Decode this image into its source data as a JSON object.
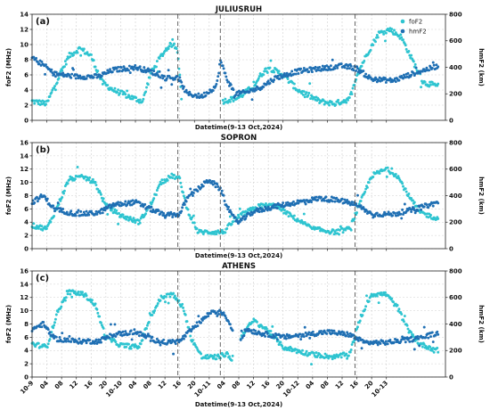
{
  "figure": {
    "xlabel": "Datetime(9-13 Oct,2024)",
    "legend": [
      "foF2",
      "hmF2"
    ]
  },
  "colors": {
    "foF2": "#2ec4d0",
    "hmF2": "#1f6fb3"
  },
  "chart_data": [
    {
      "type": "scatter",
      "panel_label": "(a)",
      "title": "JULIUSRUH",
      "xlabel": "Datetime(9-13 Oct,2024)",
      "ylabel": "foF2 (MHz)",
      "y2label": "hmF2 (km)",
      "ylim": [
        0,
        14
      ],
      "y2lim": [
        0,
        800
      ],
      "yticks": [
        0,
        2,
        4,
        6,
        8,
        10,
        12,
        14
      ],
      "y2ticks": [
        0,
        200,
        400,
        600,
        800
      ],
      "grid": true,
      "legend_position": "top-right",
      "vlines": [
        39.5,
        51.0,
        87.5
      ],
      "series": [
        {
          "name": "foF2",
          "axis": "left",
          "keypoints": [
            [
              0,
              2.5
            ],
            [
              4,
              2.2
            ],
            [
              7,
              5.5
            ],
            [
              10,
              8.5
            ],
            [
              13,
              9.5
            ],
            [
              16,
              8.5
            ],
            [
              19,
              5.0
            ],
            [
              22,
              4.0
            ],
            [
              27,
              3.0
            ],
            [
              30,
              2.5
            ],
            [
              32,
              6.0
            ],
            [
              35,
              8.5
            ],
            [
              37,
              9.8
            ],
            [
              38.5,
              10.0
            ],
            [
              39.5,
              9.0
            ],
            [
              40.5,
              3.0
            ],
            [
              51.5,
              2.5
            ],
            [
              56,
              3.0
            ],
            [
              60,
              4.5
            ],
            [
              62,
              6.0
            ],
            [
              64,
              7.0
            ],
            [
              68,
              6.0
            ],
            [
              72,
              4.0
            ],
            [
              78,
              2.5
            ],
            [
              82,
              2.2
            ],
            [
              86,
              2.8
            ],
            [
              88,
              6.0
            ],
            [
              91,
              9.0
            ],
            [
              94,
              11.5
            ],
            [
              97,
              12.0
            ],
            [
              100,
              11.0
            ],
            [
              103,
              8.0
            ],
            [
              106,
              5.0
            ],
            [
              110,
              4.5
            ]
          ],
          "gaps": [
            [
              40.5,
              51.5
            ]
          ]
        },
        {
          "name": "hmF2",
          "axis": "right",
          "keypoints": [
            [
              0,
              470
            ],
            [
              3,
              420
            ],
            [
              6,
              350
            ],
            [
              12,
              330
            ],
            [
              18,
              330
            ],
            [
              22,
              380
            ],
            [
              28,
              400
            ],
            [
              32,
              370
            ],
            [
              36,
              320
            ],
            [
              39.5,
              320
            ],
            [
              42,
              200
            ],
            [
              46,
              180
            ],
            [
              50,
              260
            ],
            [
              51,
              450
            ],
            [
              53,
              300
            ],
            [
              55,
              200
            ],
            [
              58,
              210
            ],
            [
              62,
              250
            ],
            [
              66,
              320
            ],
            [
              72,
              370
            ],
            [
              78,
              390
            ],
            [
              84,
              410
            ],
            [
              88,
              390
            ],
            [
              92,
              310
            ],
            [
              98,
              300
            ],
            [
              104,
              360
            ],
            [
              110,
              410
            ]
          ],
          "gaps": []
        }
      ]
    },
    {
      "type": "scatter",
      "panel_label": "(b)",
      "title": "SOPRON",
      "xlabel": "Datetime(9-13 Oct,2024)",
      "ylabel": "foF2 (MHz)",
      "y2label": "hmF2 (km)",
      "ylim": [
        0,
        16
      ],
      "y2lim": [
        0,
        800
      ],
      "yticks": [
        0,
        2,
        4,
        6,
        8,
        10,
        12,
        14,
        16
      ],
      "y2ticks": [
        0,
        200,
        400,
        600,
        800
      ],
      "grid": true,
      "legend_position": "",
      "vlines": [
        39.5,
        51.0,
        87.5
      ],
      "series": [
        {
          "name": "foF2",
          "axis": "left",
          "keypoints": [
            [
              0,
              3.5
            ],
            [
              4,
              3.0
            ],
            [
              7,
              6.5
            ],
            [
              10,
              10.5
            ],
            [
              14,
              10.8
            ],
            [
              17,
              10.0
            ],
            [
              20,
              6.5
            ],
            [
              24,
              5.0
            ],
            [
              29,
              4.0
            ],
            [
              32,
              6.5
            ],
            [
              35,
              10.0
            ],
            [
              38,
              11.0
            ],
            [
              40,
              10.5
            ],
            [
              42,
              6.0
            ],
            [
              45,
              2.5
            ],
            [
              52,
              2.5
            ],
            [
              55,
              4.5
            ],
            [
              58,
              5.5
            ],
            [
              62,
              6.5
            ],
            [
              66,
              6.5
            ],
            [
              70,
              5.0
            ],
            [
              76,
              3.0
            ],
            [
              82,
              2.5
            ],
            [
              86,
              3.0
            ],
            [
              89,
              7.0
            ],
            [
              92,
              11.0
            ],
            [
              96,
              12.0
            ],
            [
              99,
              11.0
            ],
            [
              102,
              8.0
            ],
            [
              105,
              5.5
            ],
            [
              110,
              4.5
            ]
          ],
          "gaps": []
        },
        {
          "name": "hmF2",
          "axis": "right",
          "keypoints": [
            [
              0,
              350
            ],
            [
              3,
              400
            ],
            [
              6,
              300
            ],
            [
              12,
              260
            ],
            [
              18,
              270
            ],
            [
              22,
              330
            ],
            [
              28,
              350
            ],
            [
              32,
              300
            ],
            [
              36,
              250
            ],
            [
              40,
              260
            ],
            [
              42,
              380
            ],
            [
              45,
              450
            ],
            [
              48,
              520
            ],
            [
              51,
              450
            ],
            [
              54,
              250
            ],
            [
              56,
              200
            ],
            [
              60,
              280
            ],
            [
              66,
              320
            ],
            [
              72,
              350
            ],
            [
              78,
              380
            ],
            [
              84,
              360
            ],
            [
              88,
              330
            ],
            [
              92,
              260
            ],
            [
              98,
              260
            ],
            [
              104,
              300
            ],
            [
              110,
              350
            ]
          ],
          "gaps": []
        }
      ]
    },
    {
      "type": "scatter",
      "panel_label": "(c)",
      "title": "ATHENS",
      "xlabel": "Datetime(9-13 Oct,2024)",
      "ylabel": "foF2 (MHz)",
      "y2label": "hmF2 (km)",
      "ylim": [
        0,
        16
      ],
      "y2lim": [
        0,
        800
      ],
      "yticks": [
        0,
        2,
        4,
        6,
        8,
        10,
        12,
        14,
        16
      ],
      "y2ticks": [
        0,
        200,
        400,
        600,
        800
      ],
      "grid": true,
      "legend_position": "",
      "vlines": [
        39.5,
        51.0,
        87.5
      ],
      "series": [
        {
          "name": "foF2",
          "axis": "left",
          "keypoints": [
            [
              0,
              5.0
            ],
            [
              4,
              4.5
            ],
            [
              7,
              10.0
            ],
            [
              10,
              12.8
            ],
            [
              14,
              12.5
            ],
            [
              17,
              11.0
            ],
            [
              20,
              6.0
            ],
            [
              24,
              4.8
            ],
            [
              29,
              4.5
            ],
            [
              32,
              9.0
            ],
            [
              35,
              12.0
            ],
            [
              38,
              12.5
            ],
            [
              41,
              10.5
            ],
            [
              43,
              6.0
            ],
            [
              46,
              3.0
            ],
            [
              50,
              3.0
            ],
            [
              53,
              3.5
            ],
            [
              54,
              2.5
            ],
            [
              57,
              6.5
            ],
            [
              60,
              8.5
            ],
            [
              64,
              7.0
            ],
            [
              68,
              4.5
            ],
            [
              75,
              3.5
            ],
            [
              82,
              3.0
            ],
            [
              86,
              3.5
            ],
            [
              89,
              9.0
            ],
            [
              92,
              12.5
            ],
            [
              96,
              12.5
            ],
            [
              99,
              10.5
            ],
            [
              102,
              7.0
            ],
            [
              105,
              5.0
            ],
            [
              110,
              4.0
            ]
          ],
          "gaps": [
            [
              54.5,
              56.5
            ]
          ]
        },
        {
          "name": "hmF2",
          "axis": "right",
          "keypoints": [
            [
              0,
              360
            ],
            [
              3,
              400
            ],
            [
              6,
              290
            ],
            [
              12,
              270
            ],
            [
              18,
              270
            ],
            [
              22,
              320
            ],
            [
              28,
              340
            ],
            [
              32,
              290
            ],
            [
              36,
              260
            ],
            [
              40,
              270
            ],
            [
              43,
              350
            ],
            [
              46,
              430
            ],
            [
              49,
              500
            ],
            [
              52,
              480
            ],
            [
              54,
              380
            ],
            [
              55,
              300
            ],
            [
              56,
              250
            ],
            [
              58,
              360
            ],
            [
              62,
              330
            ],
            [
              68,
              300
            ],
            [
              74,
              320
            ],
            [
              80,
              340
            ],
            [
              86,
              320
            ],
            [
              90,
              260
            ],
            [
              96,
              260
            ],
            [
              104,
              290
            ],
            [
              110,
              330
            ]
          ],
          "gaps": [
            [
              54.5,
              56.5
            ]
          ]
        }
      ]
    }
  ],
  "xaxis": {
    "range": [
      0,
      112
    ],
    "ticks": [
      {
        "x": 0,
        "label": "10-9"
      },
      {
        "x": 4,
        "label": "04"
      },
      {
        "x": 8,
        "label": "08"
      },
      {
        "x": 12,
        "label": "12"
      },
      {
        "x": 16,
        "label": "16"
      },
      {
        "x": 20,
        "label": "20"
      },
      {
        "x": 24,
        "label": "10-10"
      },
      {
        "x": 28,
        "label": "04"
      },
      {
        "x": 32,
        "label": "08"
      },
      {
        "x": 36,
        "label": "12"
      },
      {
        "x": 40,
        "label": "16"
      },
      {
        "x": 44,
        "label": "20"
      },
      {
        "x": 48,
        "label": "10-11"
      },
      {
        "x": 52,
        "label": "04"
      },
      {
        "x": 56,
        "label": "08"
      },
      {
        "x": 60,
        "label": "12"
      },
      {
        "x": 64,
        "label": "16"
      },
      {
        "x": 68,
        "label": "20"
      },
      {
        "x": 72,
        "label": "10-12"
      },
      {
        "x": 76,
        "label": "04"
      },
      {
        "x": 80,
        "label": "08"
      },
      {
        "x": 84,
        "label": "12"
      },
      {
        "x": 88,
        "label": "16"
      },
      {
        "x": 92,
        "label": "20"
      },
      {
        "x": 96,
        "label": "10-13"
      }
    ]
  }
}
